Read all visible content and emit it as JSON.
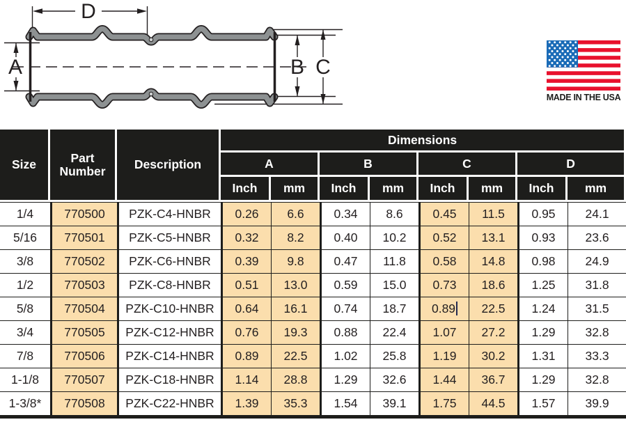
{
  "diagram": {
    "labels": {
      "a": "A",
      "b": "B",
      "c": "C",
      "d": "D"
    },
    "badge": {
      "text": "MADE IN THE USA"
    }
  },
  "table": {
    "headers": {
      "size": "Size",
      "part_number": "Part Number",
      "description": "Description",
      "dimensions": "Dimensions",
      "groups": [
        "A",
        "B",
        "C",
        "D"
      ],
      "unit_inch": "Inch",
      "unit_mm": "mm"
    },
    "rows": [
      {
        "size": "1/4",
        "part_number": "770500",
        "description": "PZK-C4-HNBR",
        "a_inch": "0.26",
        "a_mm": "6.6",
        "b_inch": "0.34",
        "b_mm": "8.6",
        "c_inch": "0.45",
        "c_mm": "11.5",
        "d_inch": "0.95",
        "d_mm": "24.1"
      },
      {
        "size": "5/16",
        "part_number": "770501",
        "description": "PZK-C5-HNBR",
        "a_inch": "0.32",
        "a_mm": "8.2",
        "b_inch": "0.40",
        "b_mm": "10.2",
        "c_inch": "0.52",
        "c_mm": "13.1",
        "d_inch": "0.93",
        "d_mm": "23.6"
      },
      {
        "size": "3/8",
        "part_number": "770502",
        "description": "PZK-C6-HNBR",
        "a_inch": "0.39",
        "a_mm": "9.8",
        "b_inch": "0.47",
        "b_mm": "11.8",
        "c_inch": "0.58",
        "c_mm": "14.8",
        "d_inch": "0.98",
        "d_mm": "24.9"
      },
      {
        "size": "1/2",
        "part_number": "770503",
        "description": "PZK-C8-HNBR",
        "a_inch": "0.51",
        "a_mm": "13.0",
        "b_inch": "0.59",
        "b_mm": "15.0",
        "c_inch": "0.73",
        "c_mm": "18.6",
        "d_inch": "1.25",
        "d_mm": "31.8"
      },
      {
        "size": "5/8",
        "part_number": "770504",
        "description": "PZK-C10-HNBR",
        "a_inch": "0.64",
        "a_mm": "16.1",
        "b_inch": "0.74",
        "b_mm": "18.7",
        "c_inch": "0.89",
        "c_mm": "22.5",
        "d_inch": "1.24",
        "d_mm": "31.5"
      },
      {
        "size": "3/4",
        "part_number": "770505",
        "description": "PZK-C12-HNBR",
        "a_inch": "0.76",
        "a_mm": "19.3",
        "b_inch": "0.88",
        "b_mm": "22.4",
        "c_inch": "1.07",
        "c_mm": "27.2",
        "d_inch": "1.29",
        "d_mm": "32.8"
      },
      {
        "size": "7/8",
        "part_number": "770506",
        "description": "PZK-C14-HNBR",
        "a_inch": "0.89",
        "a_mm": "22.5",
        "b_inch": "1.02",
        "b_mm": "25.8",
        "c_inch": "1.19",
        "c_mm": "30.2",
        "d_inch": "1.31",
        "d_mm": "33.3"
      },
      {
        "size": "1-1/8",
        "part_number": "770507",
        "description": "PZK-C18-HNBR",
        "a_inch": "1.14",
        "a_mm": "28.8",
        "b_inch": "1.29",
        "b_mm": "32.6",
        "c_inch": "1.44",
        "c_mm": "36.7",
        "d_inch": "1.29",
        "d_mm": "32.8"
      },
      {
        "size": "1-3/8*",
        "part_number": "770508",
        "description": "PZK-C22-HNBR",
        "a_inch": "1.39",
        "a_mm": "35.3",
        "b_inch": "1.54",
        "b_mm": "39.1",
        "c_inch": "1.75",
        "c_mm": "44.5",
        "d_inch": "1.57",
        "d_mm": "39.9"
      }
    ],
    "cursor": {
      "row_index": 4,
      "column": "c_inch"
    }
  },
  "colors": {
    "header_bg": "#1D1D1B",
    "highlight": "#FBDEAD",
    "drawing_gray": "#8D9192",
    "flag_red": "#E8112D",
    "flag_blue": "#1A6BB7",
    "caret": "#222A52"
  }
}
